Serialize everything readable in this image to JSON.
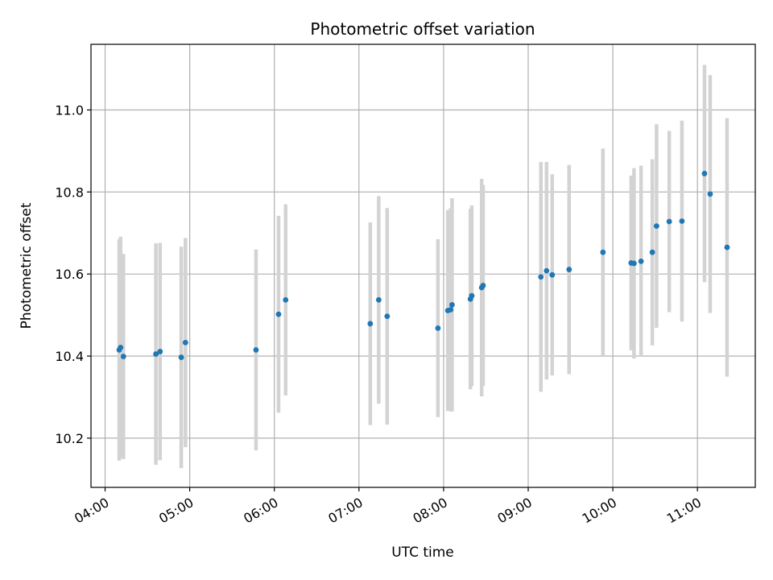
{
  "chart_data": {
    "type": "scatter",
    "title": "Photometric offset variation",
    "xlabel": "UTC time",
    "ylabel": "Photometric offset",
    "xlim": [
      "03:50",
      "11:41"
    ],
    "ylim": [
      10.08,
      11.16
    ],
    "x_ticks": [
      "04:00",
      "05:00",
      "06:00",
      "07:00",
      "08:00",
      "09:00",
      "10:00",
      "11:00"
    ],
    "y_ticks": [
      "10.2",
      "10.4",
      "10.6",
      "10.8",
      "11.0"
    ],
    "grid": true,
    "colors": {
      "points": "#1f77b4",
      "errorbars": "#d3d3d3",
      "grid": "#b0b0b0"
    },
    "series": [
      {
        "points": [
          {
            "t": "04:10",
            "y": 10.415,
            "err": 0.27
          },
          {
            "t": "04:11",
            "y": 10.421,
            "err": 0.27
          },
          {
            "t": "04:13",
            "y": 10.399,
            "err": 0.25
          },
          {
            "t": "04:36",
            "y": 10.405,
            "err": 0.27
          },
          {
            "t": "04:39",
            "y": 10.411,
            "err": 0.265
          },
          {
            "t": "04:54",
            "y": 10.397,
            "err": 0.27
          },
          {
            "t": "04:57",
            "y": 10.433,
            "err": 0.255
          },
          {
            "t": "05:47",
            "y": 10.415,
            "err": 0.245
          },
          {
            "t": "06:03",
            "y": 10.502,
            "err": 0.24
          },
          {
            "t": "06:08",
            "y": 10.537,
            "err": 0.233
          },
          {
            "t": "07:08",
            "y": 10.479,
            "err": 0.247
          },
          {
            "t": "07:14",
            "y": 10.537,
            "err": 0.253
          },
          {
            "t": "07:20",
            "y": 10.497,
            "err": 0.264
          },
          {
            "t": "07:56",
            "y": 10.468,
            "err": 0.217
          },
          {
            "t": "08:03",
            "y": 10.511,
            "err": 0.245
          },
          {
            "t": "08:05",
            "y": 10.513,
            "err": 0.248
          },
          {
            "t": "08:06",
            "y": 10.525,
            "err": 0.26
          },
          {
            "t": "08:19",
            "y": 10.539,
            "err": 0.22
          },
          {
            "t": "08:20",
            "y": 10.547,
            "err": 0.22
          },
          {
            "t": "08:27",
            "y": 10.567,
            "err": 0.265
          },
          {
            "t": "08:28",
            "y": 10.572,
            "err": 0.245
          },
          {
            "t": "09:09",
            "y": 10.593,
            "err": 0.28
          },
          {
            "t": "09:13",
            "y": 10.608,
            "err": 0.265
          },
          {
            "t": "09:17",
            "y": 10.598,
            "err": 0.245
          },
          {
            "t": "09:29",
            "y": 10.611,
            "err": 0.255
          },
          {
            "t": "09:53",
            "y": 10.653,
            "err": 0.253
          },
          {
            "t": "10:13",
            "y": 10.627,
            "err": 0.213
          },
          {
            "t": "10:15",
            "y": 10.626,
            "err": 0.232
          },
          {
            "t": "10:20",
            "y": 10.631,
            "err": 0.233
          },
          {
            "t": "10:28",
            "y": 10.653,
            "err": 0.227
          },
          {
            "t": "10:31",
            "y": 10.717,
            "err": 0.248
          },
          {
            "t": "10:40",
            "y": 10.728,
            "err": 0.221
          },
          {
            "t": "10:49",
            "y": 10.729,
            "err": 0.245
          },
          {
            "t": "11:05",
            "y": 10.845,
            "err": 0.265
          },
          {
            "t": "11:09",
            "y": 10.795,
            "err": 0.29
          },
          {
            "t": "11:21",
            "y": 10.665,
            "err": 0.315
          }
        ]
      }
    ]
  }
}
